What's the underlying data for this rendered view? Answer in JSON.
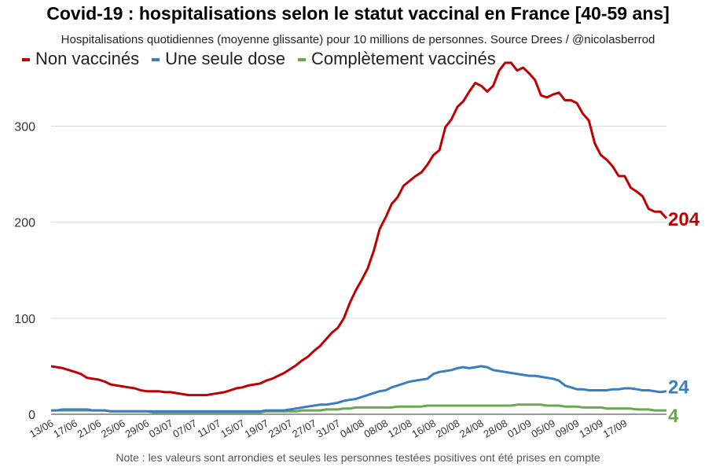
{
  "title": "Covid-19 : hospitalisations selon le statut vaccinal en France [40-59 ans]",
  "subtitle": "Hospitalisations quotidiennes (moyenne glissante) pour 10 millions de personnes. Source Drees / @nicolasberrod",
  "note": "Note : les valeurs sont arrondies et seules les personnes testées positives ont été prises en compte",
  "chart_data": {
    "type": "line",
    "title": "Covid-19 : hospitalisations selon le statut vaccinal en France [40-59 ans]",
    "xlabel": "",
    "ylabel": "",
    "x_start": "13/06",
    "x_end": "20/09",
    "x_ticks": [
      "13/06",
      "17/06",
      "21/06",
      "25/06",
      "29/06",
      "03/07",
      "07/07",
      "11/07",
      "15/07",
      "19/07",
      "23/07",
      "27/07",
      "31/07",
      "04/08",
      "08/08",
      "12/08",
      "16/08",
      "20/08",
      "24/08",
      "28/08",
      "01/09",
      "05/09",
      "09/09",
      "13/09",
      "17/09"
    ],
    "y_ticks": [
      0,
      100,
      200,
      300
    ],
    "ylim": [
      0,
      370
    ],
    "grid": true,
    "legend_position": "top-left",
    "series": [
      {
        "name": "Non vaccinés",
        "color": "#c00000",
        "end_label": "204",
        "values": [
          50,
          49,
          48,
          46,
          44,
          42,
          38,
          37,
          36,
          34,
          31,
          30,
          29,
          28,
          27,
          25,
          24,
          24,
          24,
          23,
          23,
          22,
          21,
          20,
          20,
          20,
          20,
          21,
          22,
          23,
          25,
          27,
          28,
          30,
          31,
          32,
          35,
          37,
          40,
          43,
          47,
          51,
          56,
          60,
          66,
          71,
          78,
          85,
          90,
          100,
          116,
          129,
          140,
          152,
          170,
          193,
          205,
          219,
          226,
          238,
          243,
          248,
          252,
          260,
          270,
          275,
          299,
          307,
          320,
          326,
          336,
          345,
          342,
          336,
          342,
          358,
          366,
          366,
          358,
          361,
          355,
          348,
          332,
          330,
          333,
          335,
          327,
          327,
          324,
          313,
          306,
          282,
          270,
          265,
          258,
          248,
          248,
          236,
          232,
          227,
          214,
          211,
          211,
          204
        ]
      },
      {
        "name": "Une seule dose",
        "color": "#3a7ebf",
        "end_label": "24",
        "values": [
          4,
          4,
          5,
          5,
          5,
          5,
          5,
          4,
          4,
          4,
          3,
          3,
          3,
          3,
          3,
          3,
          3,
          3,
          3,
          3,
          3,
          3,
          3,
          3,
          3,
          3,
          3,
          3,
          3,
          3,
          3,
          3,
          3,
          3,
          3,
          3,
          4,
          4,
          4,
          4,
          5,
          6,
          7,
          8,
          9,
          10,
          10,
          11,
          12,
          14,
          15,
          16,
          18,
          20,
          22,
          24,
          25,
          28,
          30,
          32,
          34,
          35,
          36,
          37,
          42,
          44,
          45,
          46,
          48,
          49,
          48,
          49,
          50,
          49,
          46,
          45,
          44,
          43,
          42,
          41,
          40,
          40,
          39,
          38,
          37,
          35,
          30,
          28,
          26,
          26,
          25,
          25,
          25,
          25,
          26,
          26,
          27,
          27,
          26,
          25,
          25,
          24,
          23,
          24
        ]
      },
      {
        "name": "Complètement vaccinés",
        "color": "#6aa84f",
        "end_label": "4",
        "values": [
          4,
          4,
          4,
          4,
          4,
          4,
          4,
          4,
          4,
          4,
          3,
          3,
          3,
          3,
          3,
          3,
          3,
          2,
          2,
          2,
          2,
          2,
          2,
          2,
          2,
          2,
          2,
          2,
          2,
          2,
          2,
          2,
          2,
          2,
          2,
          2,
          3,
          3,
          3,
          3,
          3,
          3,
          4,
          4,
          4,
          4,
          5,
          5,
          5,
          6,
          6,
          7,
          7,
          7,
          7,
          7,
          7,
          7,
          8,
          8,
          8,
          8,
          8,
          9,
          9,
          9,
          9,
          9,
          9,
          9,
          9,
          9,
          9,
          9,
          9,
          9,
          9,
          9,
          10,
          10,
          10,
          10,
          10,
          9,
          9,
          9,
          8,
          8,
          8,
          7,
          7,
          7,
          7,
          6,
          6,
          6,
          6,
          6,
          5,
          5,
          5,
          4,
          4,
          4
        ]
      }
    ]
  }
}
